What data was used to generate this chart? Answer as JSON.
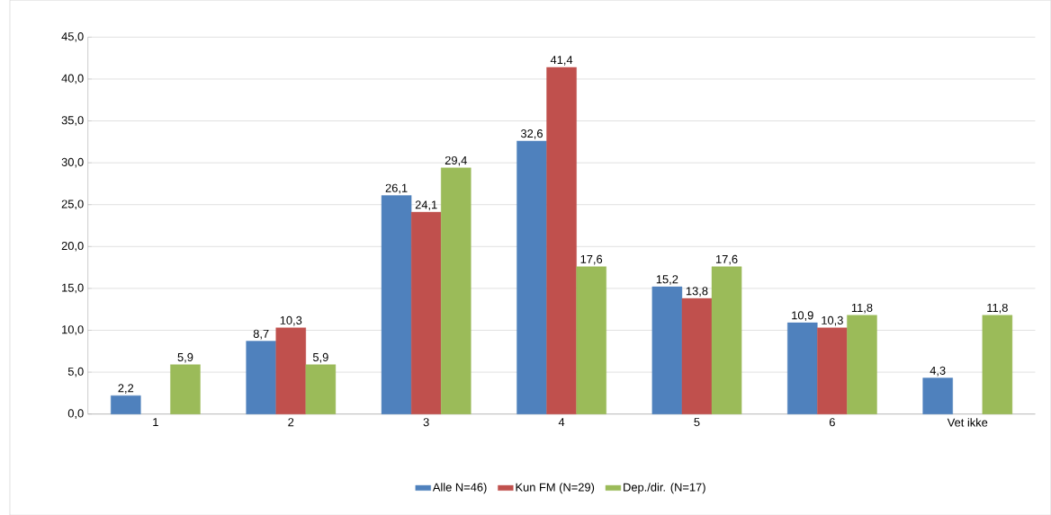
{
  "chart_data": {
    "type": "bar",
    "categories": [
      "1",
      "2",
      "3",
      "4",
      "5",
      "6",
      "Vet ikke"
    ],
    "series": [
      {
        "name": "Alle N=46)",
        "color": "#4f81bd",
        "values": [
          2.2,
          8.7,
          26.1,
          32.6,
          15.2,
          10.9,
          4.3
        ],
        "value_labels": [
          "2,2",
          "8,7",
          "26,1",
          "32,6",
          "15,2",
          "10,9",
          "4,3"
        ]
      },
      {
        "name": "Kun FM (N=29)",
        "color": "#c0504d",
        "values": [
          null,
          10.3,
          24.1,
          41.4,
          13.8,
          10.3,
          null
        ],
        "value_labels": [
          null,
          "10,3",
          "24,1",
          "41,4",
          "13,8",
          "10,3",
          null
        ]
      },
      {
        "name": "Dep./dir. (N=17)",
        "color": "#9bbb59",
        "values": [
          5.9,
          5.9,
          29.4,
          17.6,
          17.6,
          11.8,
          11.8
        ],
        "value_labels": [
          "5,9",
          "5,9",
          "29,4",
          "17,6",
          "17,6",
          "11,8",
          "11,8"
        ]
      }
    ],
    "ylim": [
      0,
      45
    ],
    "yticks": [
      {
        "value": 0,
        "label": "0,0"
      },
      {
        "value": 5,
        "label": "5,0"
      },
      {
        "value": 10,
        "label": "10,0"
      },
      {
        "value": 15,
        "label": "15,0"
      },
      {
        "value": 20,
        "label": "20,0"
      },
      {
        "value": 25,
        "label": "25,0"
      },
      {
        "value": 30,
        "label": "30,0"
      },
      {
        "value": 35,
        "label": "35,0"
      },
      {
        "value": 40,
        "label": "40,0"
      },
      {
        "value": 45,
        "label": "45,0"
      }
    ],
    "grid": "y",
    "legend": "bottom"
  }
}
